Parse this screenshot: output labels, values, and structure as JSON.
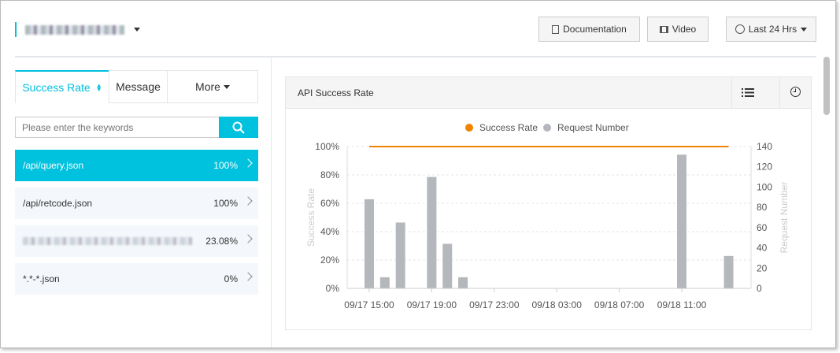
{
  "header": {
    "title": "",
    "buttons": {
      "documentation": "Documentation",
      "video": "Video",
      "time_range": "Last 24 Hrs"
    }
  },
  "tabs": [
    {
      "label": "Success Rate",
      "active": true
    },
    {
      "label": "Message"
    },
    {
      "label": "More"
    }
  ],
  "search": {
    "placeholder": "Please enter the keywords",
    "value": ""
  },
  "api_list": [
    {
      "name": "/api/query.json",
      "rate": "100%",
      "selected": true
    },
    {
      "name": "/api/retcode.json",
      "rate": "100%"
    },
    {
      "name": "",
      "rate": "23.08%"
    },
    {
      "name": "*.*-*.json",
      "rate": "0%"
    }
  ],
  "panel": {
    "title": "API Success Rate"
  },
  "colors": {
    "accent": "#00c1de",
    "success_rate": "#f08300",
    "request_number": "#b4b8bc"
  },
  "chart_data": {
    "type": "bar+line",
    "legend": [
      "Success Rate",
      "Request Number"
    ],
    "legend_position": "top",
    "x_ticks": [
      "09/17 15:00",
      "09/17 19:00",
      "09/17 23:00",
      "09/18 03:00",
      "09/18 07:00",
      "09/18 11:00"
    ],
    "y_left": {
      "label": "Success Rate",
      "ticks": [
        "0%",
        "20%",
        "40%",
        "60%",
        "80%",
        "100%"
      ],
      "range": [
        0,
        100
      ]
    },
    "y_right": {
      "label": "Request Number",
      "ticks": [
        "0",
        "20",
        "40",
        "60",
        "80",
        "100",
        "120",
        "140"
      ],
      "range": [
        0,
        140
      ]
    },
    "grid": true,
    "bars": {
      "name": "Request Number",
      "x": [
        "09/17 15:00",
        "09/17 16:00",
        "09/17 17:00",
        "09/17 19:00",
        "09/17 20:00",
        "09/17 21:00",
        "09/18 11:00",
        "09/18 14:00"
      ],
      "values": [
        88,
        11,
        65,
        110,
        44,
        11,
        132,
        32
      ]
    },
    "line": {
      "name": "Success Rate",
      "x_start": "09/17 15:00",
      "x_end": "09/18 14:00",
      "value": 100
    }
  }
}
